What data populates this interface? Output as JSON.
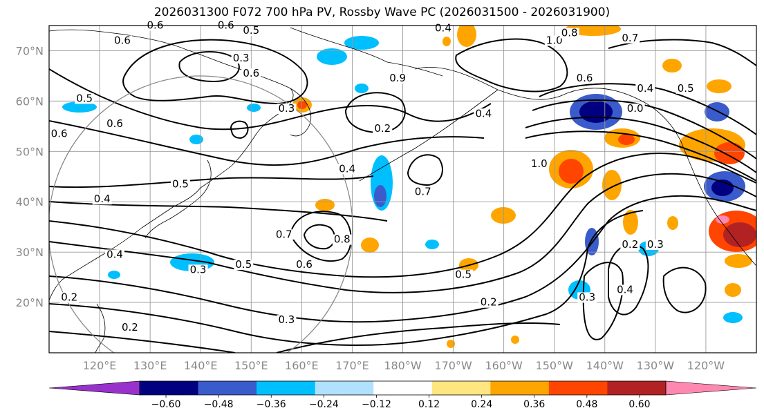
{
  "title": "2026031300 F072 700 hPa PV, Rossby Wave PC (2026031500 - 2026031900)",
  "lat_labels": [
    {
      "text": "70°N",
      "lat": 70
    },
    {
      "text": "60°N",
      "lat": 60
    },
    {
      "text": "50°N",
      "lat": 50
    },
    {
      "text": "40°N",
      "lat": 40
    },
    {
      "text": "30°N",
      "lat": 30
    },
    {
      "text": "20°N",
      "lat": 20
    }
  ],
  "lon_labels": [
    {
      "text": "120°E",
      "lon": 120
    },
    {
      "text": "130°E",
      "lon": 130
    },
    {
      "text": "140°E",
      "lon": 140
    },
    {
      "text": "150°E",
      "lon": 150
    },
    {
      "text": "160°E",
      "lon": 160
    },
    {
      "text": "170°E",
      "lon": 170
    },
    {
      "text": "180°W",
      "lon": 180
    },
    {
      "text": "170°W",
      "lon": 190
    },
    {
      "text": "160°W",
      "lon": 200
    },
    {
      "text": "150°W",
      "lon": 210
    },
    {
      "text": "140°W",
      "lon": 220
    },
    {
      "text": "130°W",
      "lon": 230
    },
    {
      "text": "120°W",
      "lon": 240
    }
  ],
  "map_extent": {
    "lon_min": 110,
    "lon_max": 250,
    "lat_min": 10,
    "lat_max": 75
  },
  "colorbar": {
    "ticks": [
      "−0.60",
      "−0.48",
      "−0.36",
      "−0.24",
      "−0.12",
      "0.12",
      "0.24",
      "0.36",
      "0.48",
      "0.60"
    ],
    "colors": [
      "#9932cc",
      "#000080",
      "#3a5bcb",
      "#00bfff",
      "#b0e2ff",
      "#ffffff",
      "#ffe680",
      "#ffa500",
      "#ff4500",
      "#b22222",
      "#ff88b0"
    ]
  },
  "contour_labels": [
    {
      "text": "0.6",
      "lon": 124.5,
      "lat": 71.5
    },
    {
      "text": "0.6",
      "lon": 123,
      "lat": 55
    },
    {
      "text": "0.5",
      "lon": 117,
      "lat": 60
    },
    {
      "text": "0.6",
      "lon": 112,
      "lat": 53
    },
    {
      "text": "0.3",
      "lon": 148,
      "lat": 68
    },
    {
      "text": "0.6",
      "lon": 150,
      "lat": 65
    },
    {
      "text": "0.5",
      "lon": 150,
      "lat": 73.5
    },
    {
      "text": "0.6",
      "lon": 145,
      "lat": 74.5
    },
    {
      "text": "0.6",
      "lon": 131,
      "lat": 74.5
    },
    {
      "text": "0.5",
      "lon": 136,
      "lat": 43
    },
    {
      "text": "0.4",
      "lon": 120.5,
      "lat": 40
    },
    {
      "text": "0.4",
      "lon": 123,
      "lat": 29
    },
    {
      "text": "0.2",
      "lon": 114,
      "lat": 20.5
    },
    {
      "text": "0.2",
      "lon": 126,
      "lat": 14.5
    },
    {
      "text": "0.3",
      "lon": 139.5,
      "lat": 26
    },
    {
      "text": "0.5",
      "lon": 148.5,
      "lat": 27
    },
    {
      "text": "0.6",
      "lon": 160.5,
      "lat": 27
    },
    {
      "text": "0.7",
      "lon": 156.5,
      "lat": 33
    },
    {
      "text": "0.8",
      "lon": 168,
      "lat": 32
    },
    {
      "text": "0.3",
      "lon": 157,
      "lat": 58
    },
    {
      "text": "0.2",
      "lon": 176,
      "lat": 54
    },
    {
      "text": "0.9",
      "lon": 179,
      "lat": 64
    },
    {
      "text": "0.4",
      "lon": 188,
      "lat": 74
    },
    {
      "text": "0.4",
      "lon": 196,
      "lat": 57
    },
    {
      "text": "0.4",
      "lon": 169,
      "lat": 46
    },
    {
      "text": "0.7",
      "lon": 184,
      "lat": 41.5
    },
    {
      "text": "0.5",
      "lon": 192,
      "lat": 25
    },
    {
      "text": "0.3",
      "lon": 157,
      "lat": 16
    },
    {
      "text": "0.2",
      "lon": 197,
      "lat": 19.5
    },
    {
      "text": "1.0",
      "lon": 210,
      "lat": 71.5
    },
    {
      "text": "0.8",
      "lon": 213,
      "lat": 73
    },
    {
      "text": "0.7",
      "lon": 225,
      "lat": 72
    },
    {
      "text": "0.6",
      "lon": 216,
      "lat": 64
    },
    {
      "text": "0.4",
      "lon": 228,
      "lat": 62
    },
    {
      "text": "0.5",
      "lon": 236,
      "lat": 62
    },
    {
      "text": "0.0",
      "lon": 226,
      "lat": 58
    },
    {
      "text": "1.0",
      "lon": 207,
      "lat": 47
    },
    {
      "text": "0.2",
      "lon": 225,
      "lat": 31
    },
    {
      "text": "0.3",
      "lon": 230,
      "lat": 31
    },
    {
      "text": "0.3",
      "lon": 216.5,
      "lat": 20.5
    },
    {
      "text": "0.4",
      "lon": 224,
      "lat": 22
    }
  ]
}
